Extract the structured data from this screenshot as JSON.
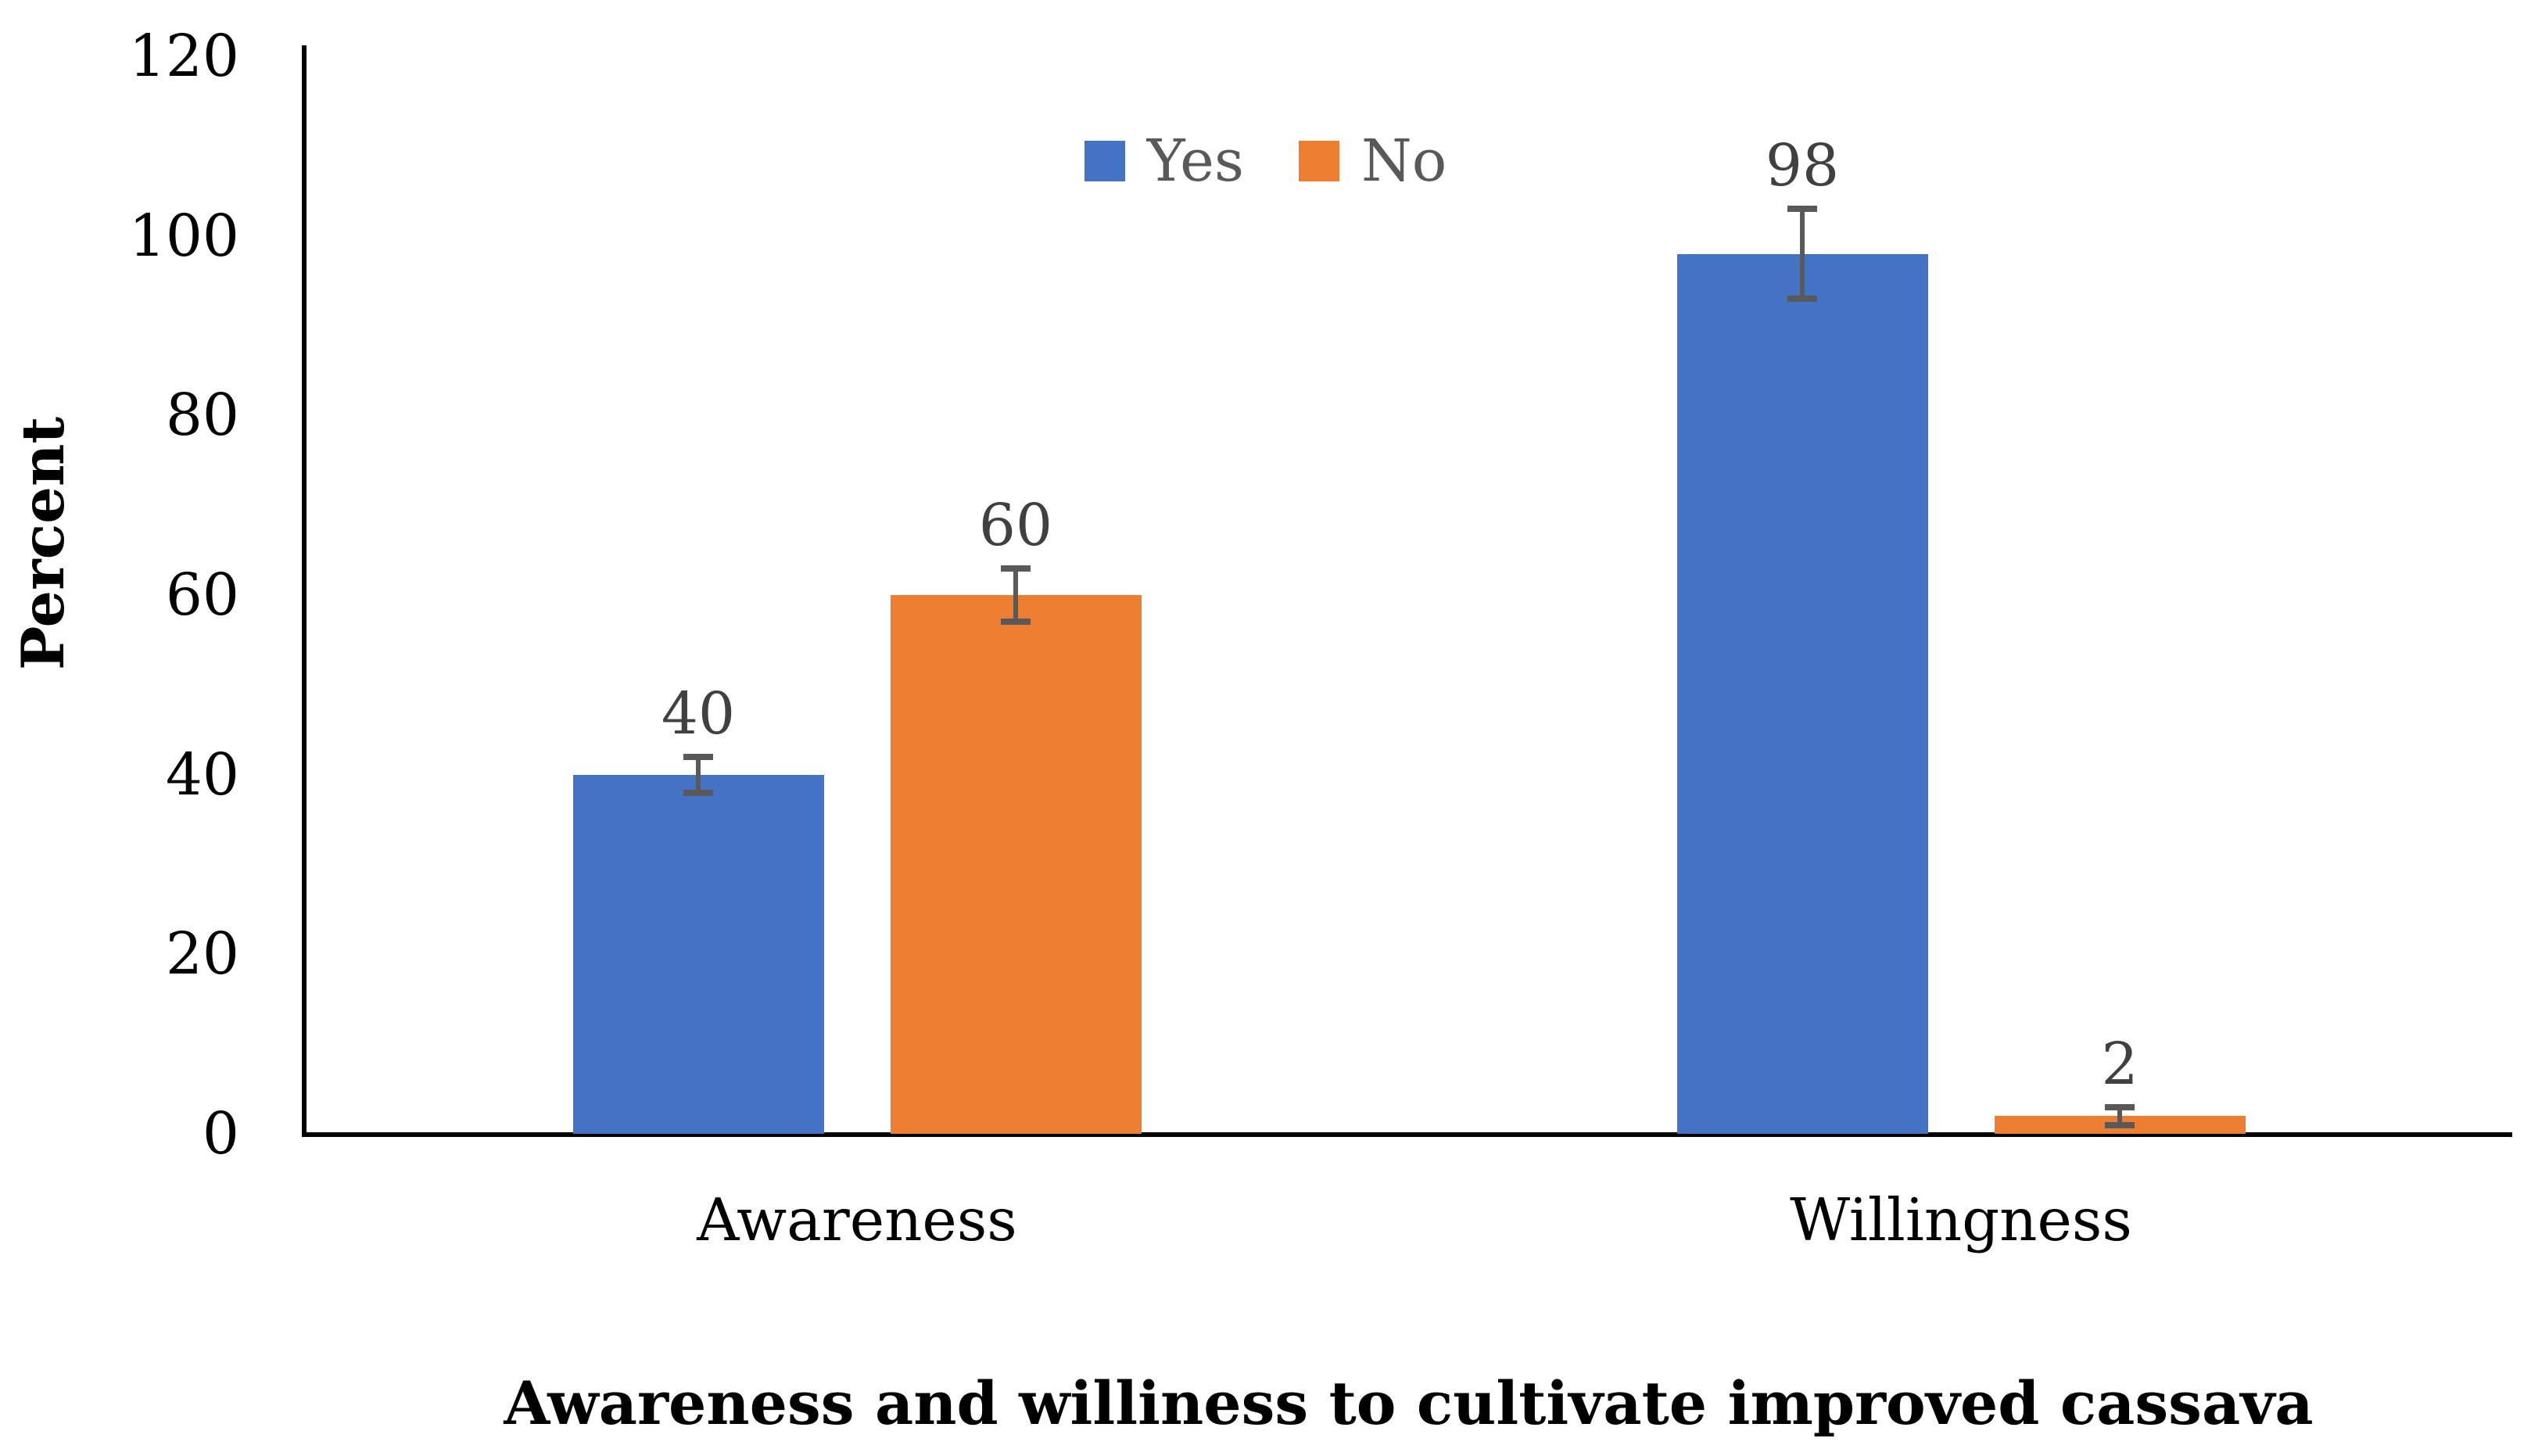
{
  "chart_data": {
    "type": "bar",
    "title": "Awareness and williness to cultivate improved cassava",
    "title_position": "bottom",
    "xlabel": "",
    "ylabel": "Percent",
    "categories": [
      "Awareness",
      "Willingness"
    ],
    "series": [
      {
        "name": "Yes",
        "color": "#4472C4",
        "values": [
          40,
          98
        ],
        "errors": [
          2,
          5
        ]
      },
      {
        "name": "No",
        "color": "#ED7D31",
        "values": [
          60,
          2
        ],
        "errors": [
          3,
          1
        ]
      }
    ],
    "ylim": [
      0,
      120
    ],
    "yticks": [
      0,
      20,
      40,
      60,
      80,
      100,
      120
    ],
    "grid": false,
    "legend_position": "top-center",
    "data_labels": true,
    "error_bars": true
  },
  "colors": {
    "background": "#FFFFFF",
    "axis_line": "#000000",
    "tick_label": "#000000",
    "category_label": "#000000",
    "title": "#000000",
    "data_label": "#404040",
    "legend_text": "#595959",
    "error_bar": "#595959",
    "series_yes": "#4472C4",
    "series_no": "#ED7D31"
  }
}
